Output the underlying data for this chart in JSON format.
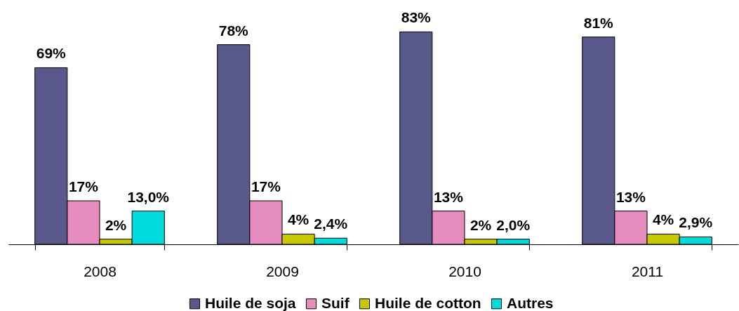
{
  "chart_data": {
    "type": "bar",
    "categories": [
      "2008",
      "2009",
      "2010",
      "2011"
    ],
    "legend": "bottom",
    "series": [
      {
        "name": "Huile de soja",
        "color": "#58588a",
        "values": [
          69,
          78,
          83,
          81
        ],
        "value_labels": [
          "69%",
          "78%",
          "83%",
          "81%"
        ]
      },
      {
        "name": "Suif",
        "color": "#e68cbe",
        "values": [
          17,
          17,
          13,
          13
        ],
        "value_labels": [
          "17%",
          "17%",
          "13%",
          "13%"
        ]
      },
      {
        "name": "Huile de cotton",
        "color": "#c8c800",
        "values": [
          2,
          4,
          2,
          4
        ],
        "value_labels": [
          "2%",
          "4%",
          "2%",
          "4%"
        ]
      },
      {
        "name": "Autres",
        "color": "#00dcdc",
        "values": [
          13.0,
          2.4,
          2.0,
          2.9
        ],
        "value_labels": [
          "13,0%",
          "2,4%",
          "2,0%",
          "2,9%"
        ]
      }
    ]
  }
}
